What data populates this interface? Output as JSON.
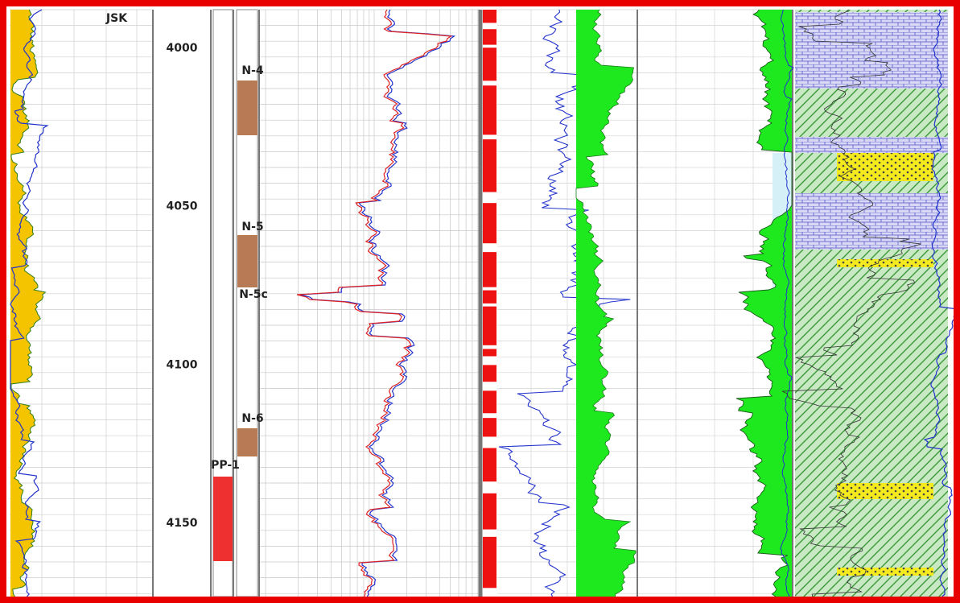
{
  "track_title": "JSK",
  "depth_labels": [
    4000,
    4050,
    4100,
    4150
  ],
  "zones": [
    {
      "label": "N-4"
    },
    {
      "label": "N-5"
    },
    {
      "label": "N-5c"
    },
    {
      "label": "N-6"
    },
    {
      "label": "PP-1"
    }
  ]
}
